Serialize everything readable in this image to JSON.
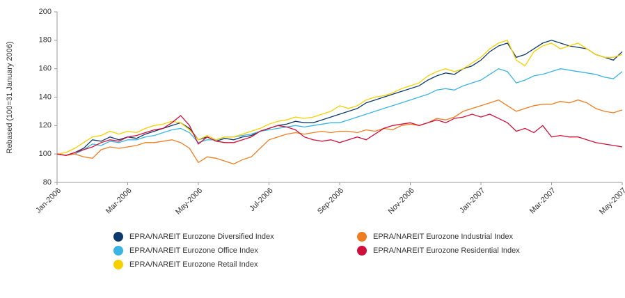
{
  "chart_data": {
    "type": "line",
    "y_label": "Rebased (100=31 January 2006)",
    "categories": [
      "Jan-2006",
      null,
      null,
      null,
      null,
      null,
      null,
      null,
      "Mar-2006",
      null,
      null,
      null,
      null,
      null,
      null,
      null,
      "May-2006",
      null,
      null,
      null,
      null,
      null,
      null,
      null,
      "Jul-2006",
      null,
      null,
      null,
      null,
      null,
      null,
      null,
      "Sep-2006",
      null,
      null,
      null,
      null,
      null,
      null,
      null,
      "Nov-2006",
      null,
      null,
      null,
      null,
      null,
      null,
      null,
      "Jan-2007",
      null,
      null,
      null,
      null,
      null,
      null,
      null,
      "Mar-2007",
      null,
      null,
      null,
      null,
      null,
      null,
      null,
      "May-2007"
    ],
    "series": [
      {
        "name": "EPRA/NAREIT Eurozone Diversified Index",
        "color": "#0d3a6b",
        "values": [
          100,
          99,
          101,
          104,
          110,
          109,
          112,
          110,
          112,
          111,
          114,
          116,
          118,
          120,
          122,
          118,
          110,
          112,
          109,
          111,
          110,
          112,
          113,
          116,
          118,
          120,
          121,
          123,
          122,
          122,
          124,
          126,
          128,
          130,
          132,
          136,
          138,
          140,
          142,
          144,
          146,
          148,
          152,
          155,
          157,
          156,
          160,
          162,
          166,
          172,
          176,
          178,
          168,
          170,
          174,
          178,
          180,
          178,
          176,
          175,
          174,
          170,
          168,
          166,
          172
        ]
      },
      {
        "name": "EPRA/NAREIT Eurozone Office Index",
        "color": "#3ab4e4",
        "values": [
          100,
          99,
          100,
          103,
          107,
          106,
          109,
          108,
          110,
          110,
          112,
          113,
          115,
          117,
          118,
          115,
          108,
          110,
          110,
          112,
          112,
          113,
          114,
          116,
          117,
          118,
          119,
          120,
          119,
          120,
          121,
          122,
          122,
          124,
          126,
          128,
          130,
          132,
          134,
          136,
          138,
          140,
          142,
          145,
          146,
          145,
          148,
          150,
          152,
          156,
          160,
          158,
          150,
          152,
          155,
          156,
          158,
          160,
          159,
          158,
          157,
          156,
          154,
          153,
          158
        ]
      },
      {
        "name": "EPRA/NAREIT Eurozone Retail Index",
        "color": "#f7d000",
        "values": [
          100,
          101,
          104,
          108,
          112,
          113,
          116,
          114,
          116,
          115,
          118,
          120,
          121,
          123,
          122,
          117,
          110,
          113,
          110,
          112,
          112,
          114,
          116,
          118,
          121,
          123,
          124,
          126,
          125,
          126,
          128,
          130,
          134,
          132,
          134,
          138,
          140,
          141,
          143,
          146,
          148,
          150,
          155,
          158,
          160,
          158,
          160,
          164,
          168,
          174,
          178,
          180,
          166,
          162,
          172,
          176,
          178,
          174,
          176,
          178,
          174,
          170,
          168,
          168,
          170
        ]
      },
      {
        "name": "EPRA/NAREIT Eurozone Industrial Index",
        "color": "#ef7d22",
        "values": [
          100,
          99,
          100,
          98,
          97,
          103,
          105,
          104,
          105,
          106,
          108,
          108,
          109,
          110,
          108,
          104,
          94,
          98,
          97,
          95,
          93,
          96,
          98,
          104,
          110,
          112,
          114,
          115,
          114,
          115,
          116,
          115,
          116,
          116,
          115,
          117,
          116,
          118,
          117,
          120,
          121,
          120,
          122,
          125,
          124,
          126,
          130,
          132,
          134,
          136,
          138,
          134,
          130,
          132,
          134,
          135,
          135,
          137,
          136,
          138,
          136,
          132,
          130,
          129,
          131
        ]
      },
      {
        "name": "EPRA/NAREIT Eurozone Residential Index",
        "color": "#d0103a",
        "values": [
          100,
          99,
          101,
          103,
          105,
          108,
          110,
          109,
          112,
          113,
          115,
          117,
          118,
          122,
          127,
          120,
          107,
          112,
          109,
          108,
          108,
          110,
          112,
          116,
          118,
          120,
          119,
          117,
          112,
          110,
          109,
          110,
          108,
          110,
          112,
          110,
          114,
          118,
          120,
          121,
          122,
          120,
          122,
          124,
          122,
          125,
          126,
          128,
          126,
          128,
          125,
          122,
          116,
          118,
          115,
          120,
          112,
          113,
          112,
          112,
          110,
          108,
          107,
          106,
          105
        ]
      }
    ],
    "ylim": [
      80,
      200
    ],
    "yticks": [
      80,
      100,
      120,
      140,
      160,
      180,
      200
    ],
    "grid": false
  }
}
